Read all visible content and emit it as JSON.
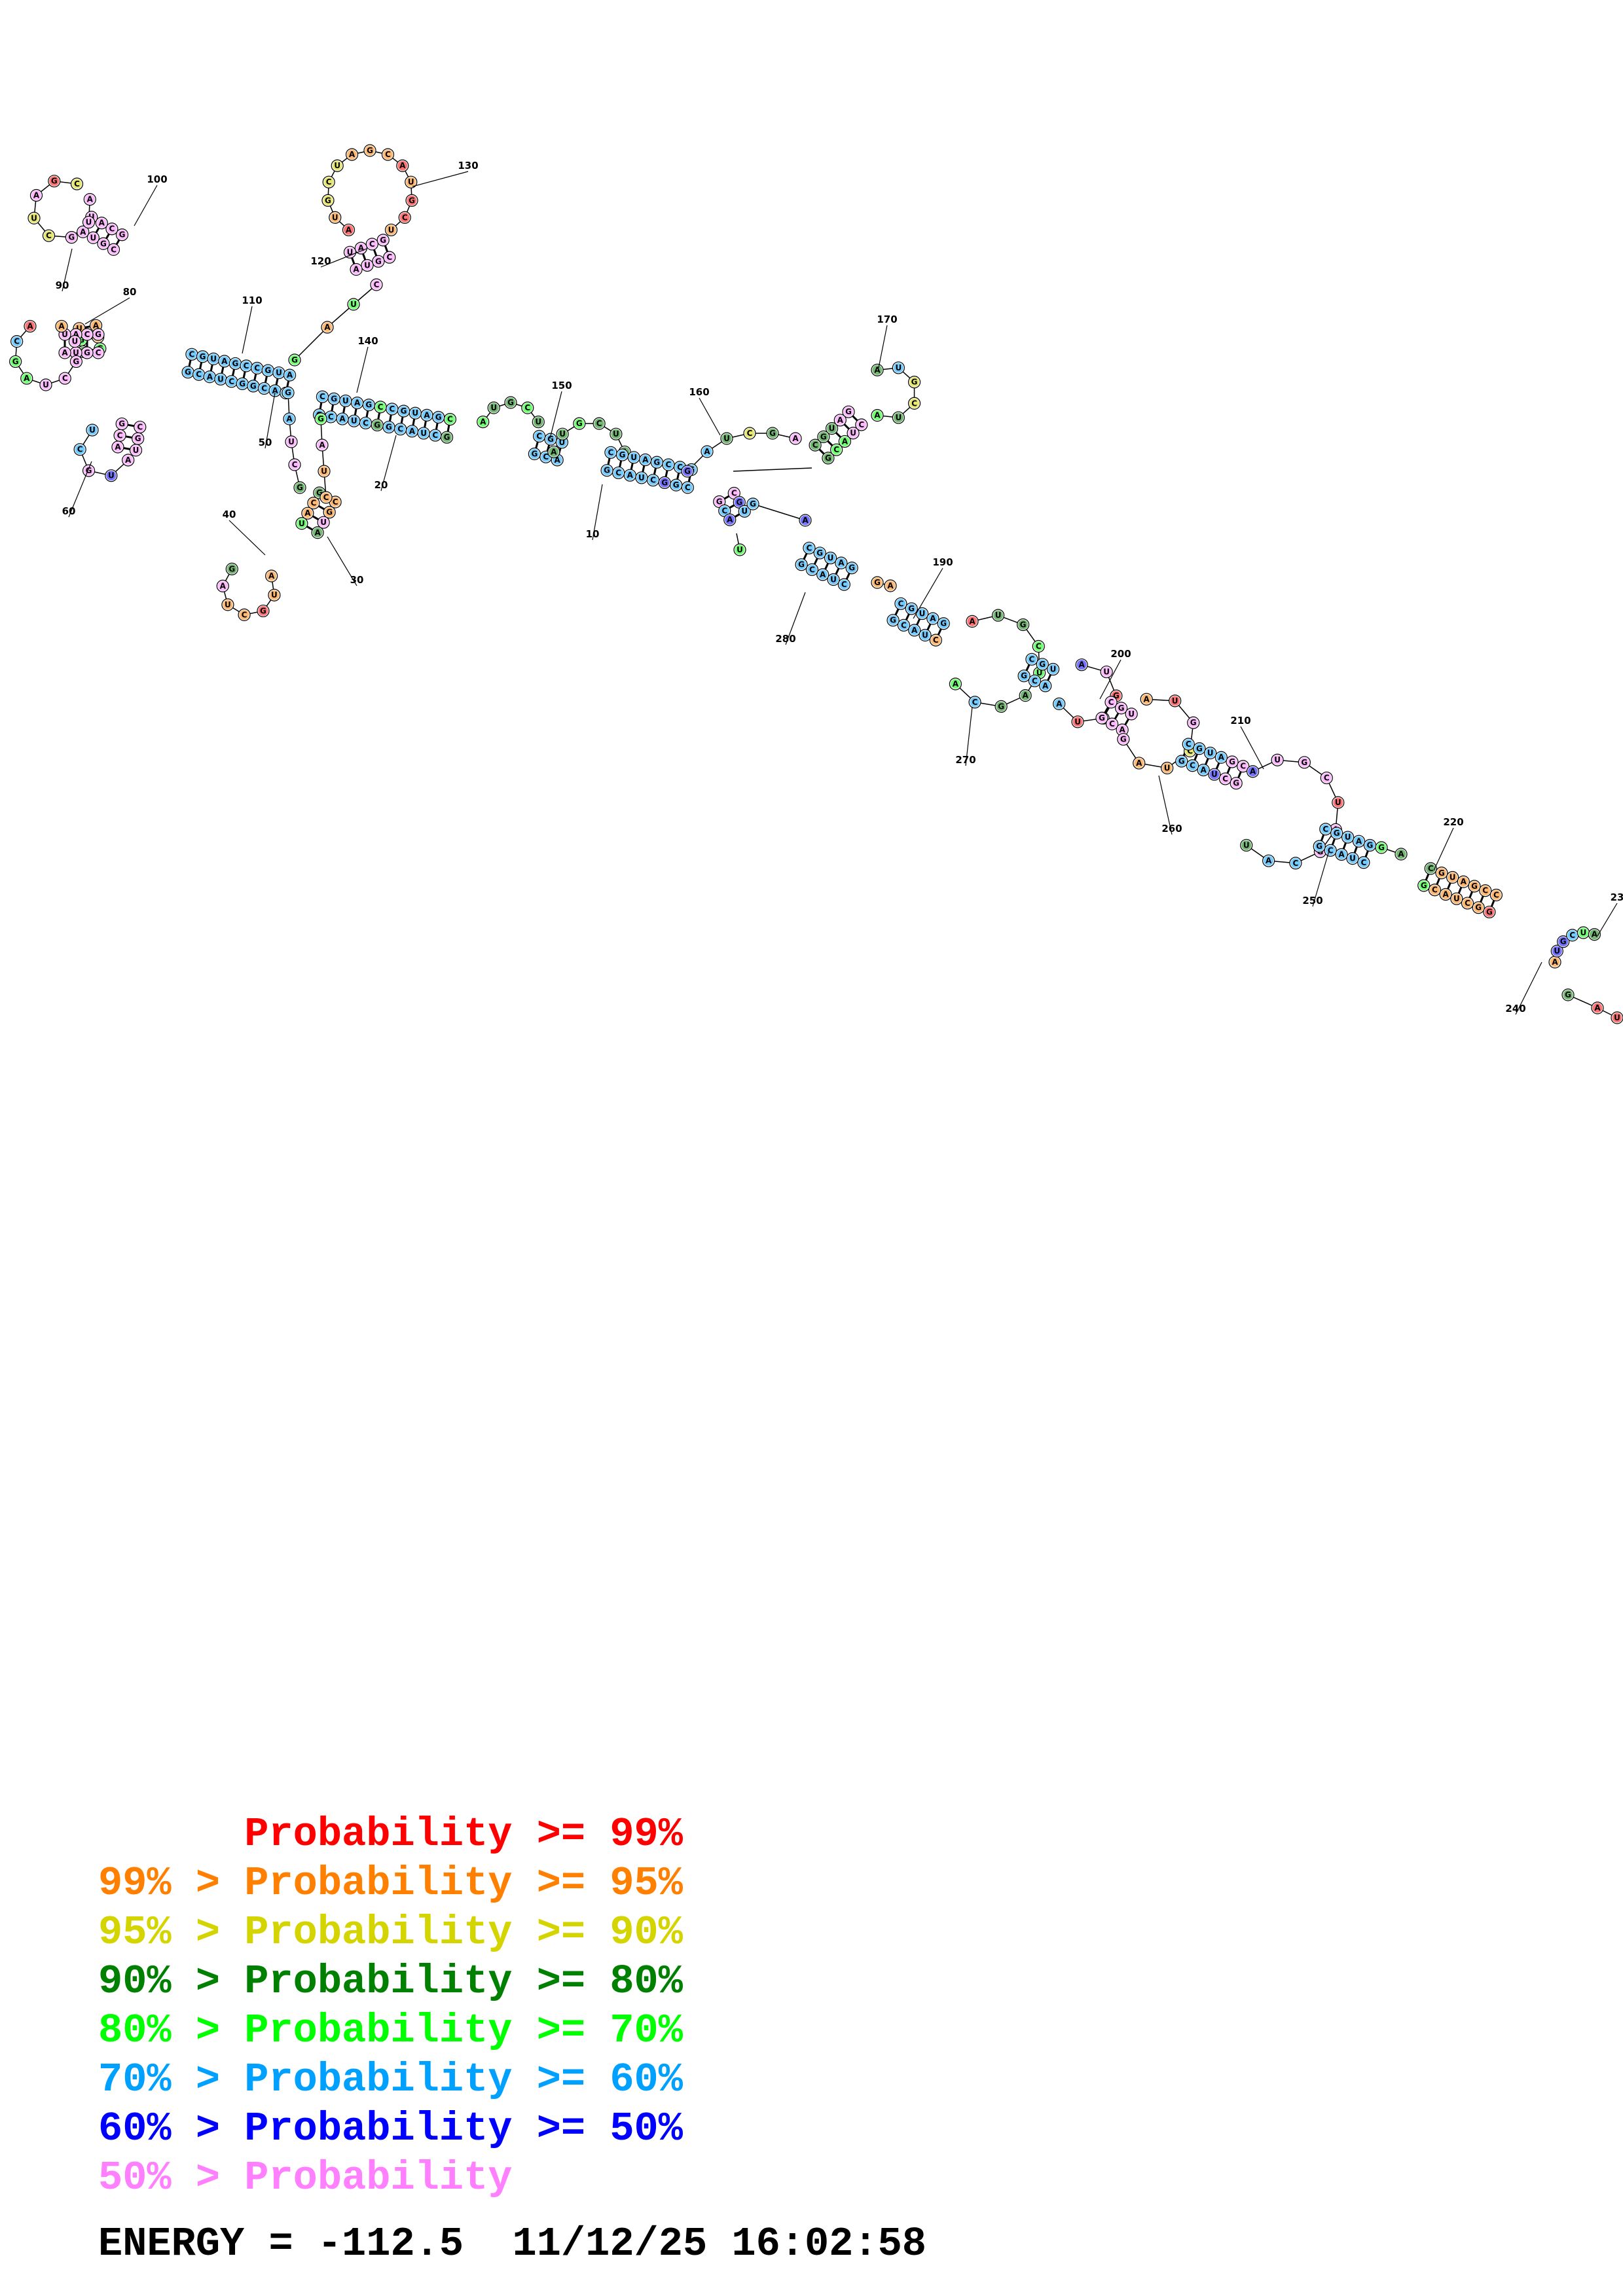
{
  "diagram": {
    "position_labels": [
      "10",
      "20",
      "30",
      "40",
      "50",
      "60",
      "80",
      "90",
      "100",
      "110",
      "120",
      "130",
      "140",
      "150",
      "160",
      "170",
      "190",
      "200",
      "210",
      "220",
      "23",
      "240",
      "250",
      "260",
      "270",
      "280"
    ]
  },
  "legend": {
    "colors": {
      "p99": "#ff0000",
      "p95": "#ff8000",
      "p90": "#d4d400",
      "p80": "#008000",
      "p70": "#00ff00",
      "p60": "#00a0ff",
      "p50": "#0000ff",
      "plow": "#ff80ff"
    },
    "lines": [
      {
        "text": "      Probability >= 99%",
        "color": "#ff0000"
      },
      {
        "text": "99% > Probability >= 95%",
        "color": "#ff8000"
      },
      {
        "text": "95% > Probability >= 90%",
        "color": "#d4d400"
      },
      {
        "text": "90% > Probability >= 80%",
        "color": "#008000"
      },
      {
        "text": "80% > Probability >= 70%",
        "color": "#00ff00"
      },
      {
        "text": "70% > Probability >= 60%",
        "color": "#00a0ff"
      },
      {
        "text": "60% > Probability >= 50%",
        "color": "#0000ff"
      },
      {
        "text": "50% > Probability",
        "color": "#ff80ff"
      }
    ]
  },
  "footer": {
    "energy_text": "ENERGY = -112.5  11/12/25 16:02:58"
  }
}
